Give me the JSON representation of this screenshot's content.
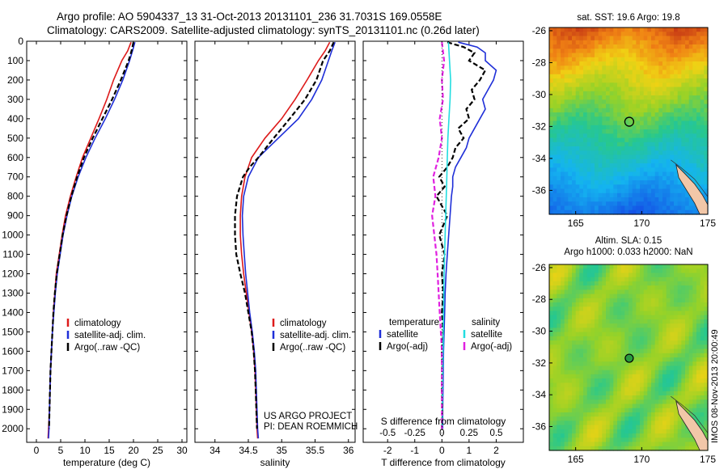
{
  "header": {
    "line1": "Argo profile: AO 5904337_13 31-Oct-2013 20131101_236 31.7031S 169.0558E",
    "line2": "Climatology: CARS2009. Satellite-adjusted climatology: synTS_20131101.nc (0.26d later)"
  },
  "colors": {
    "climatology": "#dd1a1a",
    "satellite": "#1f2fd8",
    "argo": "#000000",
    "salinity_satellite": "#22dde0",
    "salinity_argo": "#e020e0"
  },
  "chart_data": [
    {
      "id": "temperature",
      "type": "line",
      "xlabel": "temperature (deg C)",
      "ylabel": "",
      "xlim": [
        -2,
        31
      ],
      "ylim": [
        2070,
        0
      ],
      "xticks": [
        0,
        5,
        10,
        15,
        20,
        25,
        30
      ],
      "yticks": [
        0,
        100,
        200,
        300,
        400,
        500,
        600,
        700,
        800,
        900,
        1000,
        1100,
        1200,
        1300,
        1400,
        1500,
        1600,
        1700,
        1800,
        1900,
        2000
      ],
      "legend": [
        "climatology",
        "satellite-adj. clim.",
        "Argo(..raw -QC)"
      ],
      "series": [
        {
          "name": "climatology",
          "color": "#dd1a1a",
          "depth": [
            5,
            50,
            100,
            200,
            300,
            400,
            500,
            600,
            700,
            800,
            900,
            1000,
            1100,
            1200,
            1300,
            1400,
            1500,
            1600,
            1700,
            1800,
            1900,
            2000,
            2050
          ],
          "values": [
            19.5,
            18.8,
            17.6,
            15.9,
            14.5,
            12.9,
            11.2,
            9.5,
            8.2,
            7.0,
            6.0,
            5.3,
            4.7,
            4.1,
            3.8,
            3.5,
            3.3,
            3.1,
            2.9,
            2.8,
            2.7,
            2.5,
            2.4
          ]
        },
        {
          "name": "satellite-adj. clim.",
          "color": "#1f2fd8",
          "depth": [
            5,
            50,
            100,
            200,
            300,
            400,
            500,
            600,
            700,
            800,
            900,
            1000,
            1100,
            1200,
            1300,
            1400,
            1500,
            1600,
            1700,
            1800,
            1900,
            2000,
            2050
          ],
          "values": [
            20.3,
            19.8,
            19.2,
            17.8,
            16.1,
            14.2,
            12.1,
            10.2,
            8.6,
            7.3,
            6.3,
            5.5,
            4.9,
            4.3,
            3.9,
            3.6,
            3.3,
            3.1,
            2.9,
            2.8,
            2.7,
            2.6,
            2.5
          ]
        },
        {
          "name": "Argo(..raw -QC)",
          "color": "#000000",
          "dash": true,
          "depth": [
            5,
            50,
            100,
            200,
            300,
            400,
            500,
            600,
            700,
            800,
            900,
            1000,
            1100,
            1200,
            1300,
            1400,
            1500,
            1600,
            1700,
            1800,
            1900,
            2000
          ],
          "values": [
            20.0,
            19.6,
            19.0,
            17.4,
            15.6,
            13.6,
            11.6,
            9.8,
            8.4,
            7.2,
            6.2,
            5.4,
            4.8,
            4.2,
            3.8,
            3.5,
            3.3,
            3.1,
            2.9,
            2.8,
            2.7,
            2.6
          ]
        }
      ]
    },
    {
      "id": "salinity",
      "type": "line",
      "xlabel": "salinity",
      "ylabel": "",
      "xlim": [
        33.7,
        36.1
      ],
      "ylim": [
        2070,
        0
      ],
      "xticks": [
        34,
        34.5,
        35,
        35.5,
        36
      ],
      "legend": [
        "climatology",
        "satellite-adj. clim.",
        "Argo(..raw -QC)"
      ],
      "annotation": [
        "US ARGO PROJECT",
        "PI: DEAN ROEMMICH"
      ],
      "series": [
        {
          "name": "climatology",
          "color": "#dd1a1a",
          "depth": [
            5,
            50,
            100,
            200,
            300,
            400,
            500,
            600,
            700,
            800,
            900,
            1000,
            1100,
            1200,
            1300,
            1400,
            1500,
            1600,
            1700,
            1800,
            1900,
            2000,
            2050
          ],
          "values": [
            35.72,
            35.65,
            35.55,
            35.38,
            35.2,
            35.0,
            34.75,
            34.55,
            34.45,
            34.4,
            34.38,
            34.38,
            34.4,
            34.43,
            34.47,
            34.51,
            34.55,
            34.58,
            34.6,
            34.61,
            34.62,
            34.63,
            34.64
          ]
        },
        {
          "name": "satellite-adj. clim.",
          "color": "#1f2fd8",
          "depth": [
            5,
            50,
            100,
            200,
            300,
            400,
            500,
            600,
            700,
            800,
            900,
            1000,
            1100,
            1200,
            1300,
            1400,
            1500,
            1600,
            1700,
            1800,
            1900,
            2000,
            2050
          ],
          "values": [
            35.8,
            35.75,
            35.7,
            35.6,
            35.45,
            35.25,
            34.95,
            34.65,
            34.5,
            34.43,
            34.41,
            34.42,
            34.44,
            34.46,
            34.49,
            34.52,
            34.56,
            34.59,
            34.61,
            34.62,
            34.63,
            34.64,
            34.65
          ]
        },
        {
          "name": "Argo(..raw -QC)",
          "color": "#000000",
          "dash": true,
          "depth": [
            5,
            50,
            100,
            200,
            300,
            400,
            500,
            600,
            650,
            700,
            800,
            900,
            1000,
            1100,
            1200,
            1300,
            1400,
            1500,
            1600,
            1700,
            1800,
            1900,
            2000
          ],
          "values": [
            35.78,
            35.72,
            35.62,
            35.52,
            35.35,
            35.12,
            34.88,
            34.65,
            34.52,
            34.42,
            34.33,
            34.3,
            34.3,
            34.32,
            34.38,
            34.45,
            34.5,
            34.55,
            34.58,
            34.6,
            34.61,
            34.62,
            34.63
          ]
        }
      ]
    },
    {
      "id": "difference",
      "type": "line",
      "xlabel": "T difference from climatology",
      "x2label": "S difference from climatology",
      "xlim": [
        -2.9,
        3.0
      ],
      "x2lim": [
        -0.725,
        0.75
      ],
      "ylim": [
        2070,
        0
      ],
      "xticks": [
        -2,
        -1,
        0,
        1,
        2
      ],
      "x2ticks": [
        -0.5,
        -0.25,
        0,
        0.25,
        0.5
      ],
      "x2ticklabels": [
        "-0.5",
        "-0.25",
        "0",
        "0.25",
        "0.5"
      ],
      "legend_temperature": {
        "title": "temperature",
        "items": [
          "satellite",
          "Argo(-adj)"
        ]
      },
      "legend_salinity": {
        "title": "salinity",
        "items": [
          "satellite",
          "Argo(-adj)"
        ]
      },
      "series": [
        {
          "name": "T satellite",
          "color": "#1f2fd8",
          "axis": "T",
          "depth": [
            5,
            30,
            60,
            100,
            150,
            200,
            250,
            300,
            350,
            400,
            450,
            500,
            550,
            600,
            650,
            700,
            750,
            800,
            900,
            1000,
            1100,
            1200,
            1300,
            1400,
            1500,
            1600,
            1700,
            1800,
            1900,
            2000
          ],
          "values": [
            0.6,
            1.3,
            1.6,
            1.6,
            2.0,
            1.9,
            1.7,
            1.5,
            1.6,
            1.4,
            1.2,
            1.0,
            0.9,
            0.7,
            0.5,
            0.4,
            0.4,
            0.35,
            0.3,
            0.25,
            0.2,
            0.15,
            0.12,
            0.1,
            0.08,
            0.06,
            0.05,
            0.04,
            0.03,
            0.03
          ]
        },
        {
          "name": "T Argo(-adj)",
          "color": "#000000",
          "axis": "T",
          "dash": true,
          "depth": [
            5,
            30,
            60,
            100,
            150,
            200,
            250,
            300,
            350,
            400,
            450,
            500,
            550,
            600,
            650,
            700,
            750,
            800,
            900,
            1000,
            1100,
            1200,
            1300,
            1400,
            1500,
            1600,
            1700,
            1800,
            1900,
            2000
          ],
          "values": [
            0.2,
            0.8,
            1.2,
            1.0,
            1.6,
            1.4,
            1.1,
            1.2,
            0.9,
            1.0,
            0.6,
            0.8,
            0.5,
            0.4,
            0.2,
            -0.1,
            0.1,
            -0.2,
            0.2,
            -0.1,
            0.1,
            0.0,
            0.05,
            0.0,
            0.05,
            0.0,
            0.02,
            0.0,
            0.02,
            0.0
          ]
        },
        {
          "name": "S satellite",
          "color": "#22dde0",
          "axis": "S",
          "depth": [
            5,
            100,
            200,
            300,
            400,
            500,
            600,
            700,
            800,
            900,
            1000,
            1200,
            1400,
            1600,
            1800,
            2000
          ],
          "values": [
            0.06,
            0.07,
            0.08,
            0.075,
            0.065,
            0.055,
            0.05,
            0.045,
            0.04,
            0.035,
            0.03,
            0.02,
            0.015,
            0.01,
            0.005,
            0.002
          ]
        },
        {
          "name": "S Argo(-adj)",
          "color": "#e020e0",
          "axis": "S",
          "dash": true,
          "depth": [
            5,
            100,
            200,
            300,
            400,
            500,
            600,
            700,
            800,
            900,
            1000,
            1100,
            1200,
            1300,
            1400,
            1500,
            1600,
            1700,
            1800,
            1900,
            2000
          ],
          "values": [
            0.0,
            0.02,
            0.0,
            0.01,
            -0.02,
            0.0,
            -0.03,
            -0.08,
            -0.06,
            -0.09,
            -0.07,
            -0.05,
            -0.04,
            -0.03,
            -0.02,
            -0.01,
            0.0,
            0.0,
            0.0,
            0.0,
            0.0
          ]
        }
      ]
    },
    {
      "id": "sst_map",
      "type": "heatmap",
      "title": "sat. SST: 19.6 Argo: 19.8",
      "xlim": [
        163,
        175
      ],
      "ylim": [
        -37.5,
        -25.8
      ],
      "xticks": [
        165,
        170,
        175
      ],
      "yticks": [
        -26,
        -28,
        -30,
        -32,
        -34,
        -36
      ],
      "marker": {
        "lon": 169.0558,
        "lat": -31.7031
      }
    },
    {
      "id": "sla_map",
      "type": "heatmap",
      "title_line1": "Altim. SLA: 0.15",
      "title_line2": "Argo h1000: 0.033 h2000: NaN",
      "xlim": [
        163,
        175
      ],
      "ylim": [
        -37.5,
        -25.8
      ],
      "xticks": [
        165,
        170,
        175
      ],
      "yticks": [
        -26,
        -28,
        -30,
        -32,
        -34,
        -36
      ],
      "marker": {
        "lon": 169.0558,
        "lat": -31.7031
      }
    }
  ],
  "stamp": "IMOS 08-Nov-2013 20:00:49"
}
